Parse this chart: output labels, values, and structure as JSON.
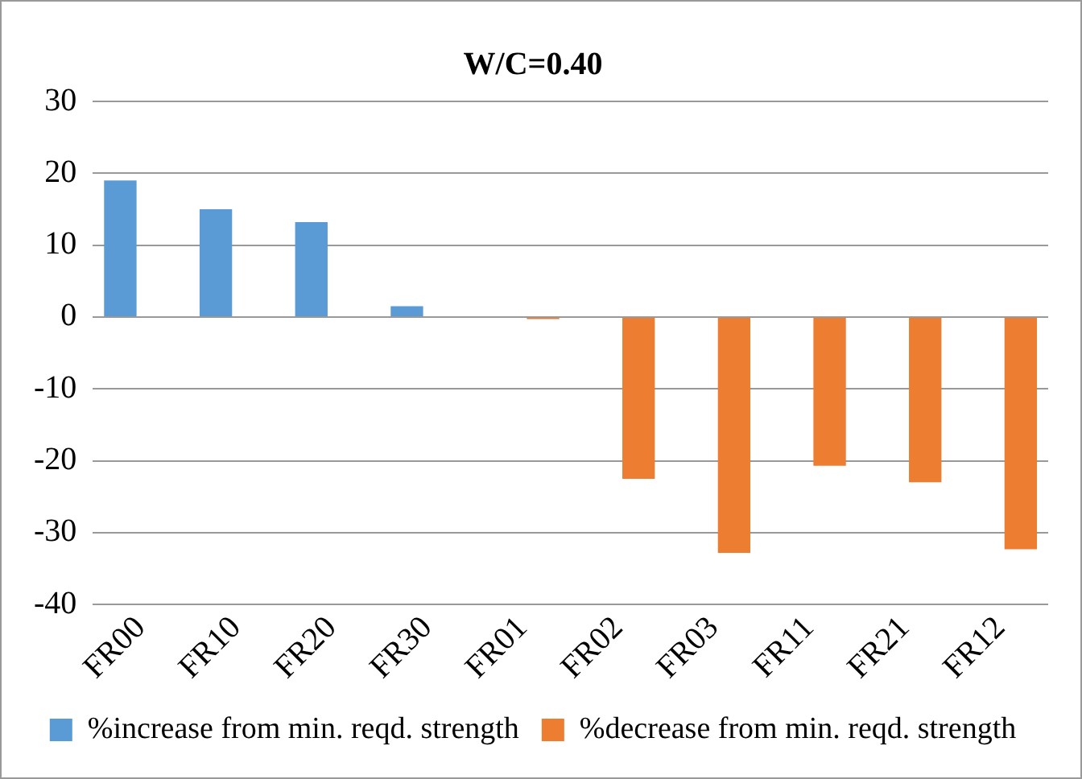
{
  "chart_data": {
    "type": "bar",
    "title": "W/C=0.40",
    "categories": [
      "FR00",
      "FR10",
      "FR20",
      "FR30",
      "FR01",
      "FR02",
      "FR03",
      "FR11",
      "FR21",
      "FR12"
    ],
    "series": [
      {
        "name": "%increase from min. reqd. strength",
        "color": "#5b9bd5",
        "values": [
          19,
          15,
          13.2,
          1.5,
          null,
          null,
          null,
          null,
          null,
          null
        ]
      },
      {
        "name": "%decrease from min. reqd. strength",
        "color": "#ed7d31",
        "values": [
          null,
          null,
          null,
          null,
          -0.3,
          -22.5,
          -32.8,
          -20.7,
          -23,
          -32.3
        ]
      }
    ],
    "ylim": [
      -40,
      30
    ],
    "yticks": [
      -40,
      -30,
      -20,
      -10,
      0,
      10,
      20,
      30
    ],
    "grid": "y",
    "legend": "bottom"
  }
}
